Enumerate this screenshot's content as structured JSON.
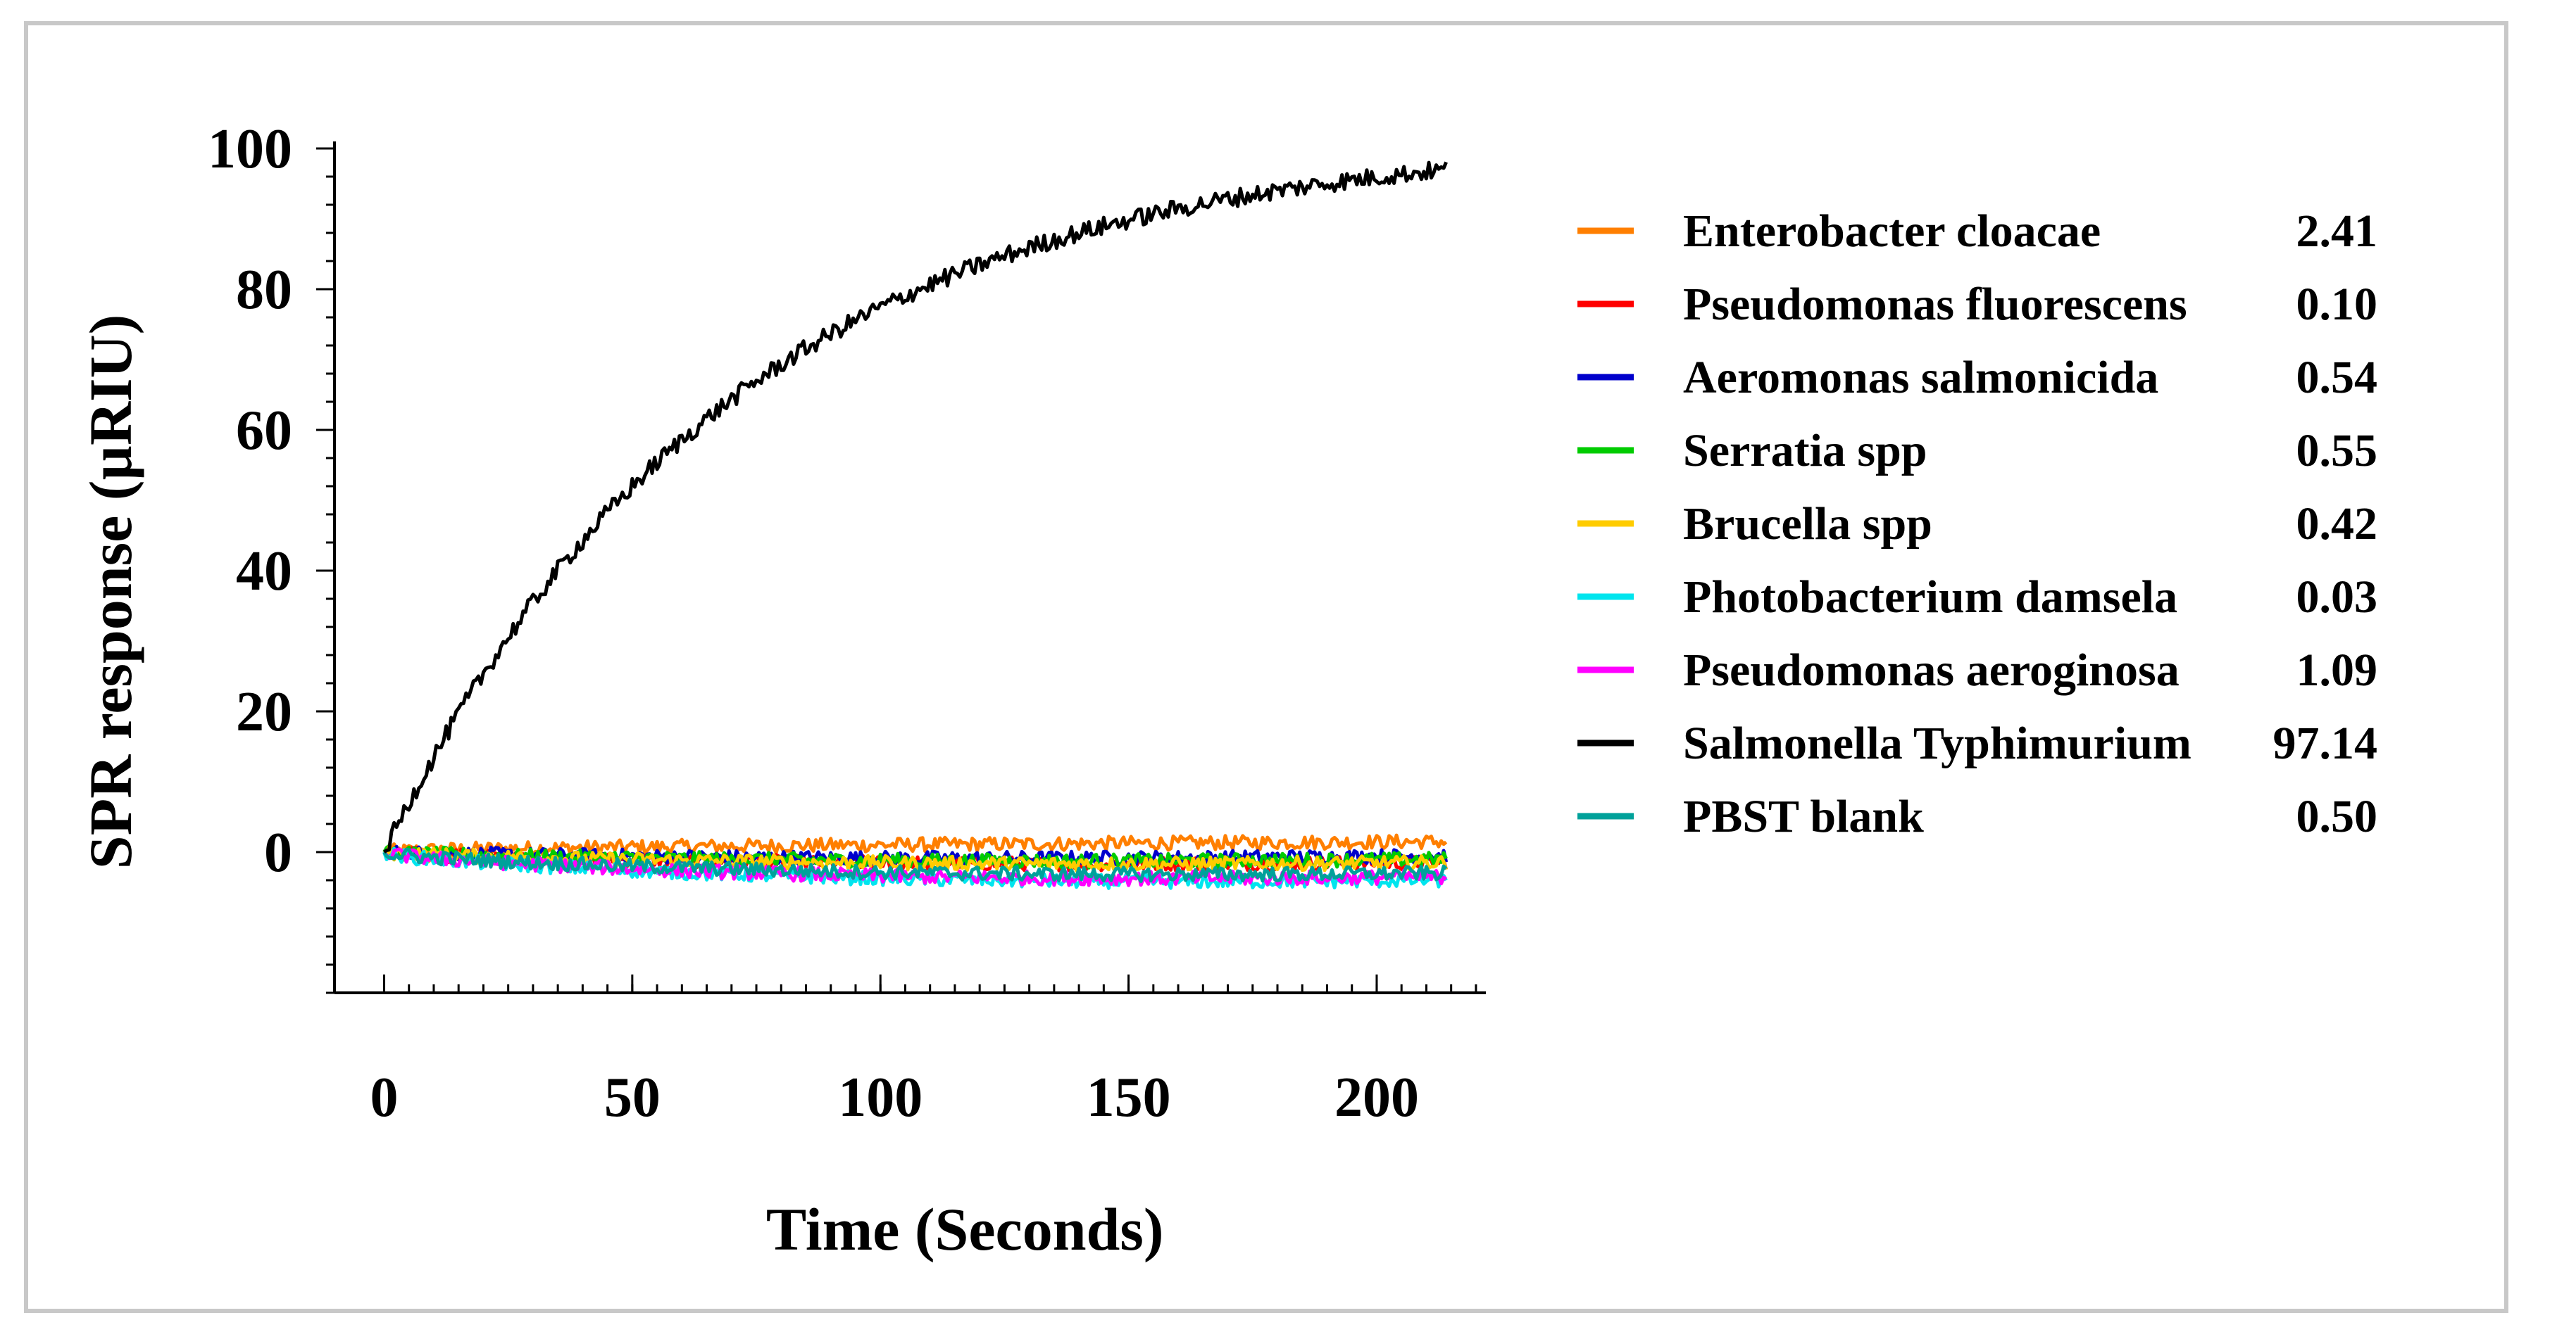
{
  "chart_data": {
    "type": "line",
    "title": "",
    "xlabel": "Time (Seconds)",
    "ylabel": "SPR response (µRIU)",
    "xlim": [
      -10,
      222
    ],
    "ylim": [
      -20,
      100
    ],
    "xticks": [
      0,
      50,
      100,
      150,
      200
    ],
    "yticks": [
      0,
      20,
      40,
      60,
      80,
      100
    ],
    "x_minor_step": 5,
    "y_minor_step": 4,
    "x_end": 214,
    "legend_position": "right",
    "series": [
      {
        "name": "Enterobacter cloacae",
        "value": "2.41",
        "color": "#ff7f00",
        "final": 1.5,
        "sag": 0.0,
        "noise": 1.0
      },
      {
        "name": "Pseudomonas fluorescens",
        "value": "0.10",
        "color": "#ff0000",
        "final": -1.5,
        "sag": 0.5,
        "noise": 1.0
      },
      {
        "name": "Aeromonas salmonicida",
        "value": "0.54",
        "color": "#0000cc",
        "final": -0.5,
        "sag": 0.5,
        "noise": 1.0
      },
      {
        "name": "Serratia spp",
        "value": "0.55",
        "color": "#00cc00",
        "final": -1.0,
        "sag": 0.5,
        "noise": 1.0
      },
      {
        "name": "Brucella spp",
        "value": "0.42",
        "color": "#ffcc00",
        "final": -1.5,
        "sag": 0.5,
        "noise": 1.0
      },
      {
        "name": "Photobacterium damsela",
        "value": "0.03",
        "color": "#00e5ee",
        "final": -4.0,
        "sag": 1.0,
        "noise": 1.0
      },
      {
        "name": "Pseudomonas aeroginosa",
        "value": "1.09",
        "color": "#ff00ff",
        "final": -3.5,
        "sag": 1.0,
        "noise": 1.0
      },
      {
        "name": "Salmonella Typhimurium",
        "value": "97.14",
        "color": "#000000",
        "final": 97.0,
        "sag": 0.0,
        "noise": 1.3,
        "tau": 70
      },
      {
        "name": "PBST blank",
        "value": "0.50",
        "color": "#00a19a",
        "final": -3.0,
        "sag": 0.8,
        "noise": 1.0
      }
    ]
  }
}
